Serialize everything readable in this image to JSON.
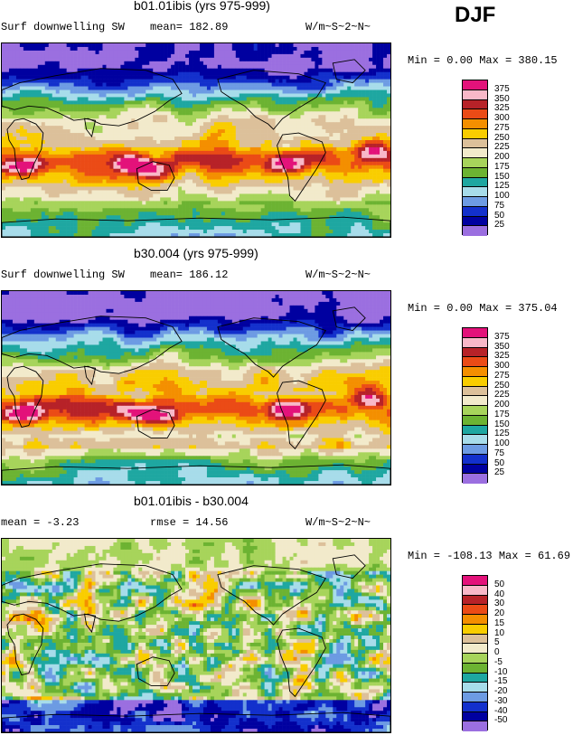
{
  "season": "DJF",
  "colors": {
    "c13": [
      "#e3127a",
      "#f8b8c8",
      "#b72228",
      "#eb4b16",
      "#f48f00",
      "#f9cd00",
      "#f4e9b0",
      "#dcc09a",
      "#f2eacb",
      "#a7d45b",
      "#6cb332",
      "#1ea7a1",
      "#a7dcea",
      "#6d9be3",
      "#1330cc",
      "#0000a0",
      "#9b6fe0"
    ],
    "c14": [
      "#e3127a",
      "#f8b8c8",
      "#b72228",
      "#eb4b16",
      "#f48f00",
      "#f9cd00",
      "#dcc09a",
      "#f2eacb",
      "#a7d45b",
      "#6cb332",
      "#1ea7a1",
      "#a7dcea",
      "#6d9be3",
      "#1330cc",
      "#0000a0",
      "#9b6fe0"
    ]
  },
  "chart_data": [
    {
      "type": "heatmap",
      "title": "b01.01ibis (yrs 975-999)",
      "subtitle_left": "Surf downwelling SW",
      "stat": "mean=  182.89",
      "units": "W/m~S~2~N~",
      "range_text": "Min =    0.00 Max = 380.15",
      "min": 0.0,
      "max": 380.15,
      "levels": [
        "375",
        "350",
        "325",
        "300",
        "275",
        "250",
        "225",
        "200",
        "175",
        "150",
        "125",
        "100",
        "75",
        "50",
        "25"
      ],
      "palette": "swA"
    },
    {
      "type": "heatmap",
      "title": "b30.004 (yrs 975-999)",
      "subtitle_left": "Surf downwelling SW",
      "stat": "mean=  186.12",
      "units": "W/m~S~2~N~",
      "range_text": "Min =    0.00 Max = 375.04",
      "min": 0.0,
      "max": 375.04,
      "levels": [
        "375",
        "350",
        "325",
        "300",
        "275",
        "250",
        "225",
        "200",
        "175",
        "150",
        "125",
        "100",
        "75",
        "50",
        "25"
      ],
      "palette": "swB"
    },
    {
      "type": "heatmap",
      "title": "b01.01ibis - b30.004",
      "subtitle_left": "mean =   -3.23",
      "stat": "rmse =   14.56",
      "units": "W/m~S~2~N~",
      "range_text": "Min = -108.13 Max =  61.69",
      "min": -108.13,
      "max": 61.69,
      "levels": [
        "50",
        "40",
        "30",
        "20",
        "15",
        "10",
        "5",
        "0",
        "-5",
        "-10",
        "-15",
        "-20",
        "-30",
        "-40",
        "-50"
      ],
      "palette": "diff"
    }
  ],
  "palettes": {
    "swA": [
      "#e3127a",
      "#f8b8c8",
      "#b72228",
      "#eb4b16",
      "#f48f00",
      "#f9cd00",
      "#dcc09a",
      "#f2eacb",
      "#a7d45b",
      "#6cb332",
      "#1ea7a1",
      "#a7dcea",
      "#6d9be3",
      "#1330cc",
      "#0000a0",
      "#9b6fe0"
    ],
    "swB": [
      "#e3127a",
      "#f8b8c8",
      "#b72228",
      "#eb4b16",
      "#f48f00",
      "#f9cd00",
      "#dcc09a",
      "#f2eacb",
      "#a7d45b",
      "#6cb332",
      "#1ea7a1",
      "#a7dcea",
      "#6d9be3",
      "#1330cc",
      "#0000a0",
      "#9b6fe0"
    ],
    "diff": [
      "#e3127a",
      "#f8b8c8",
      "#b72228",
      "#eb4b16",
      "#f48f00",
      "#f9cd00",
      "#dcc09a",
      "#f2eacb",
      "#a7d45b",
      "#6cb332",
      "#1ea7a1",
      "#a7dcea",
      "#6d9be3",
      "#1330cc",
      "#0000a0",
      "#9b6fe0"
    ]
  }
}
